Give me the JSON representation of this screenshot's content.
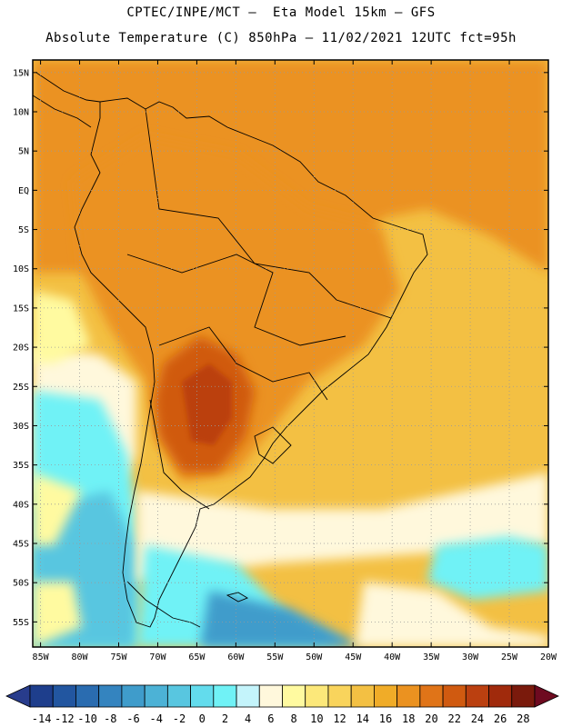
{
  "header": {
    "line1": "CPTEC/INPE/MCT –  Eta Model 15km – GFS",
    "line2": "Absolute Temperature (C) 850hPa – 11/02/2021 12UTC fct=95h"
  },
  "axes": {
    "lat_labels": [
      "15N",
      "10N",
      "5N",
      "EQ",
      "5S",
      "10S",
      "15S",
      "20S",
      "25S",
      "30S",
      "35S",
      "40S",
      "45S",
      "50S",
      "55S"
    ],
    "lat_values": [
      15,
      10,
      5,
      0,
      -5,
      -10,
      -15,
      -20,
      -25,
      -30,
      -35,
      -40,
      -45,
      -50,
      -55
    ],
    "lon_labels": [
      "85W",
      "80W",
      "75W",
      "70W",
      "65W",
      "60W",
      "55W",
      "50W",
      "45W",
      "40W",
      "35W",
      "30W",
      "25W",
      "20W"
    ],
    "lon_values": [
      -85,
      -80,
      -75,
      -70,
      -65,
      -60,
      -55,
      -50,
      -45,
      -40,
      -35,
      -30,
      -25,
      -20
    ]
  },
  "colorbar": {
    "labels": [
      "-14",
      "-12",
      "-10",
      "-8",
      "-6",
      "-4",
      "-2",
      "0",
      "2",
      "4",
      "6",
      "8",
      "10",
      "12",
      "14",
      "16",
      "18",
      "20",
      "22",
      "24",
      "26",
      "28"
    ],
    "colors": [
      "#1e3e8c",
      "#2256a0",
      "#2a6cb0",
      "#3484bf",
      "#3f9ccb",
      "#4cb2d6",
      "#58c6e0",
      "#63dced",
      "#70f2f6",
      "#c4f4fb",
      "#fff8dc",
      "#fffaa0",
      "#fce87a",
      "#f9d45c",
      "#f3c043",
      "#f0ac28",
      "#eb9220",
      "#e07418",
      "#d05a10",
      "#bb4010",
      "#a02a0c",
      "#7a1a0c"
    ],
    "under_color": "#283c8c",
    "over_color": "#6e0a20"
  },
  "map": {
    "background_colors": {
      "hot": "#eb9220",
      "warm": "#f3c043",
      "mild": "#f9d45c",
      "cool": "#fff8dc",
      "cold": "#70f2f6",
      "colder": "#58c6e0",
      "coldest": "#3f9ccb",
      "hottest": "#d05a10"
    }
  }
}
